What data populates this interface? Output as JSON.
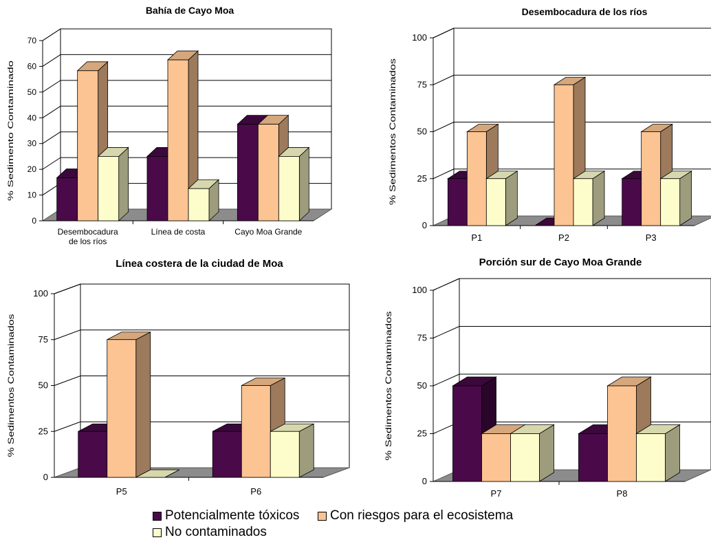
{
  "colors": {
    "potencialmente_toxicos": "#4a0a4a",
    "con_riesgos": "#fbc492",
    "no_contaminados": "#fdfdcc",
    "floor": "#8c8c8c"
  },
  "series_names": [
    "Potencialmente tóxicos",
    "Con riesgos para el ecosistema",
    "No contaminados"
  ],
  "legend": {
    "item_1": "Potencialmente tóxicos",
    "item_2": "Con riesgos para el ecosistema",
    "item_3": "No contaminados"
  },
  "chart_data": [
    {
      "type": "bar",
      "title": "Bahía de Cayo Moa",
      "ylabel": "% Sedimento Contaminado",
      "xlabel": "",
      "ylim": [
        0,
        70
      ],
      "yticks": [
        0,
        10,
        20,
        30,
        40,
        50,
        60,
        70
      ],
      "categories": [
        "Desembocadura de los ríos",
        "Línea de costa",
        "Cayo Moa Grande"
      ],
      "series": [
        {
          "name": "Potencialmente tóxicos",
          "values": [
            16.7,
            25,
            37.5
          ]
        },
        {
          "name": "Con riesgos para el ecosistema",
          "values": [
            58.3,
            62.5,
            37.5
          ]
        },
        {
          "name": "No contaminados",
          "values": [
            25,
            12.5,
            25
          ]
        }
      ]
    },
    {
      "type": "bar",
      "title": "Desembocadura de los ríos",
      "ylabel": "% Sedimentos Contaminados",
      "xlabel": "",
      "ylim": [
        0,
        100
      ],
      "yticks": [
        0,
        25,
        50,
        75,
        100
      ],
      "categories": [
        "P1",
        "P2",
        "P3"
      ],
      "series": [
        {
          "name": "Potencialmente tóxicos",
          "values": [
            25,
            0,
            25
          ]
        },
        {
          "name": "Con riesgos para el ecosistema",
          "values": [
            50,
            75,
            50
          ]
        },
        {
          "name": "No contaminados",
          "values": [
            25,
            25,
            25
          ]
        }
      ]
    },
    {
      "type": "bar",
      "title": "Línea costera de la ciudad de Moa",
      "ylabel": "% Sedimentos Contaminados",
      "xlabel": "",
      "ylim": [
        0,
        100
      ],
      "yticks": [
        0,
        25,
        50,
        75,
        100
      ],
      "categories": [
        "P5",
        "P6"
      ],
      "series": [
        {
          "name": "Potencialmente tóxicos",
          "values": [
            25,
            25
          ]
        },
        {
          "name": "Con riesgos para el ecosistema",
          "values": [
            75,
            50
          ]
        },
        {
          "name": "No contaminados",
          "values": [
            0,
            25
          ]
        }
      ]
    },
    {
      "type": "bar",
      "title": "Porción sur de Cayo Moa Grande",
      "ylabel": "% Sedimentos Contaminados",
      "xlabel": "",
      "ylim": [
        0,
        100
      ],
      "yticks": [
        0,
        25,
        50,
        75,
        100
      ],
      "categories": [
        "P7",
        "P8"
      ],
      "series": [
        {
          "name": "Potencialmente tóxicos",
          "values": [
            50,
            25
          ]
        },
        {
          "name": "Con riesgos para el ecosistema",
          "values": [
            25,
            50
          ]
        },
        {
          "name": "No contaminados",
          "values": [
            25,
            25
          ]
        }
      ]
    }
  ]
}
